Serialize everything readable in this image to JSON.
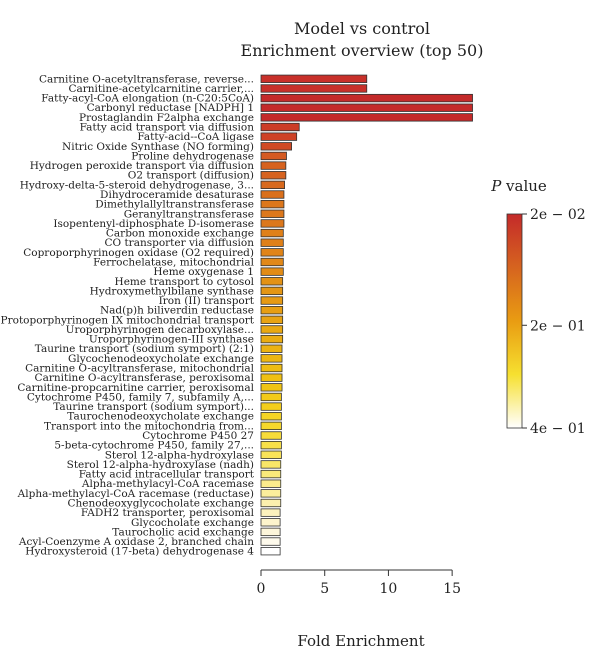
{
  "chart_data": {
    "type": "bar",
    "orientation": "horizontal",
    "title": "Model vs control",
    "subtitle": "Enrichment overview (top 50)",
    "xlabel": "Fold Enrichment",
    "ylabel": "",
    "xlim": [
      0,
      17.5
    ],
    "xticks": [
      "0",
      "5",
      "10",
      "15"
    ],
    "xtick_values": [
      0,
      5,
      10,
      15
    ],
    "categories": [
      "Carnitine O-acetyltransferase, reverse...",
      "Carnitine-acetylcarnitine carrier,...",
      "Fatty-acyl-CoA elongation (n-C20:5CoA)",
      "Carbonyl reductase [NADPH] 1",
      "Prostaglandin F2alpha exchange",
      "Fatty acid transport via diffusion",
      "Fatty-acid--CoA ligase",
      "Nitric Oxide Synthase (NO forming)",
      "Proline dehydrogenase",
      "Hydrogen peroxide transport via diffusion",
      "O2 transport (diffusion)",
      "Hydroxy-delta-5-steroid dehydrogenase, 3...",
      "Dihydroceramide desaturase",
      "Dimethylallyltranstransferase",
      "Geranyltranstransferase",
      "Isopentenyl-diphosphate D-isomerase",
      "Carbon monoxide exchange",
      "CO transporter via diffusion",
      "Coproporphyrinogen oxidase (O2 required)",
      "Ferrochelatase, mitochondrial",
      "Heme oxygenase 1",
      "Heme transport to cytosol",
      "Hydroxymethylbilane synthase",
      "Iron (II) transport",
      "Nad(p)h biliverdin reductase",
      "Protoporphyrinogen IX mitochondrial transport",
      "Uroporphyrinogen decarboxylase...",
      "Uroporphyrinogen-III synthase",
      "Taurine transport (sodium symport) (2:1)",
      "Glycochenodeoxycholate exchange",
      "Carnitine O-acyltransferase, mitochondrial",
      "Carnitine O-acyltransferase, peroxisomal",
      "Carnitine-propcarnitine carrier, peroxisomal",
      "Cytochrome P450, family 7, subfamily A,...",
      "Taurine transport (sodium symport)...",
      "Taurochenodeoxycholate exchange",
      "Transport into the mitochondria from...",
      "Cytochrome P450 27",
      "5-beta-cytochrome P450, family 27,...",
      "Sterol 12-alpha-hydroxylase",
      "Sterol 12-alpha-hydroxylase (nadh)",
      "Fatty acid intracellular transport",
      "Alpha-methylacyl-CoA racemase",
      "Alpha-methylacyl-CoA racemase (reductase)",
      "Chenodeoxyglycocholate exchange",
      "FADH2 transporter, peroxisomal",
      "Glycocholate exchange",
      "Taurocholic acid exchange",
      "Acyl-Coenzyme A oxidase 2, branched chain",
      "Hydroxysteroid (17-beta) dehydrogenase 4"
    ],
    "values": [
      8.3,
      8.3,
      16.6,
      16.6,
      16.6,
      3.0,
      2.8,
      2.4,
      2.0,
      1.95,
      1.95,
      1.85,
      1.8,
      1.8,
      1.8,
      1.8,
      1.75,
      1.75,
      1.75,
      1.75,
      1.75,
      1.7,
      1.7,
      1.7,
      1.7,
      1.7,
      1.7,
      1.7,
      1.65,
      1.65,
      1.65,
      1.65,
      1.65,
      1.6,
      1.6,
      1.6,
      1.6,
      1.6,
      1.6,
      1.6,
      1.55,
      1.55,
      1.55,
      1.55,
      1.55,
      1.5,
      1.5,
      1.5,
      1.5,
      1.5
    ],
    "bar_colors": [
      "#c8302a",
      "#c8302a",
      "#c42a2a",
      "#c42a2a",
      "#c42a2a",
      "#cc3c26",
      "#ce4226",
      "#d04a24",
      "#d45a22",
      "#d6621f",
      "#d6621f",
      "#d8691e",
      "#da701c",
      "#dc771c",
      "#dc781c",
      "#dc781c",
      "#df8019",
      "#df8019",
      "#e08418",
      "#e18818",
      "#e28c16",
      "#e39215",
      "#e49614",
      "#e69a14",
      "#e79e13",
      "#e8a313",
      "#e9a812",
      "#eaac12",
      "#ebb212",
      "#ecb612",
      "#eebc12",
      "#efc012",
      "#f0c414",
      "#f2ca18",
      "#f3ce1c",
      "#f4d424",
      "#f6d82c",
      "#f7dc3a",
      "#f8e048",
      "#f9e358",
      "#f9e668",
      "#faea7a",
      "#fbec8c",
      "#fbee9c",
      "#fcf0ae",
      "#fcf2be",
      "#fdf4cc",
      "#fdf6da",
      "#fefaec",
      "#ffffff"
    ],
    "legend": {
      "title_prefix": "P",
      "title_suffix": " value",
      "gradient_colors": [
        "#c42a2a",
        "#d6641f",
        "#e99c12",
        "#f6e030",
        "#ffffff"
      ],
      "tick_labels": [
        "2e − 02",
        "2e − 01",
        "4e − 01"
      ],
      "tick_positions": [
        0,
        0.52,
        1.0
      ],
      "placement": "right"
    },
    "grid": false
  }
}
